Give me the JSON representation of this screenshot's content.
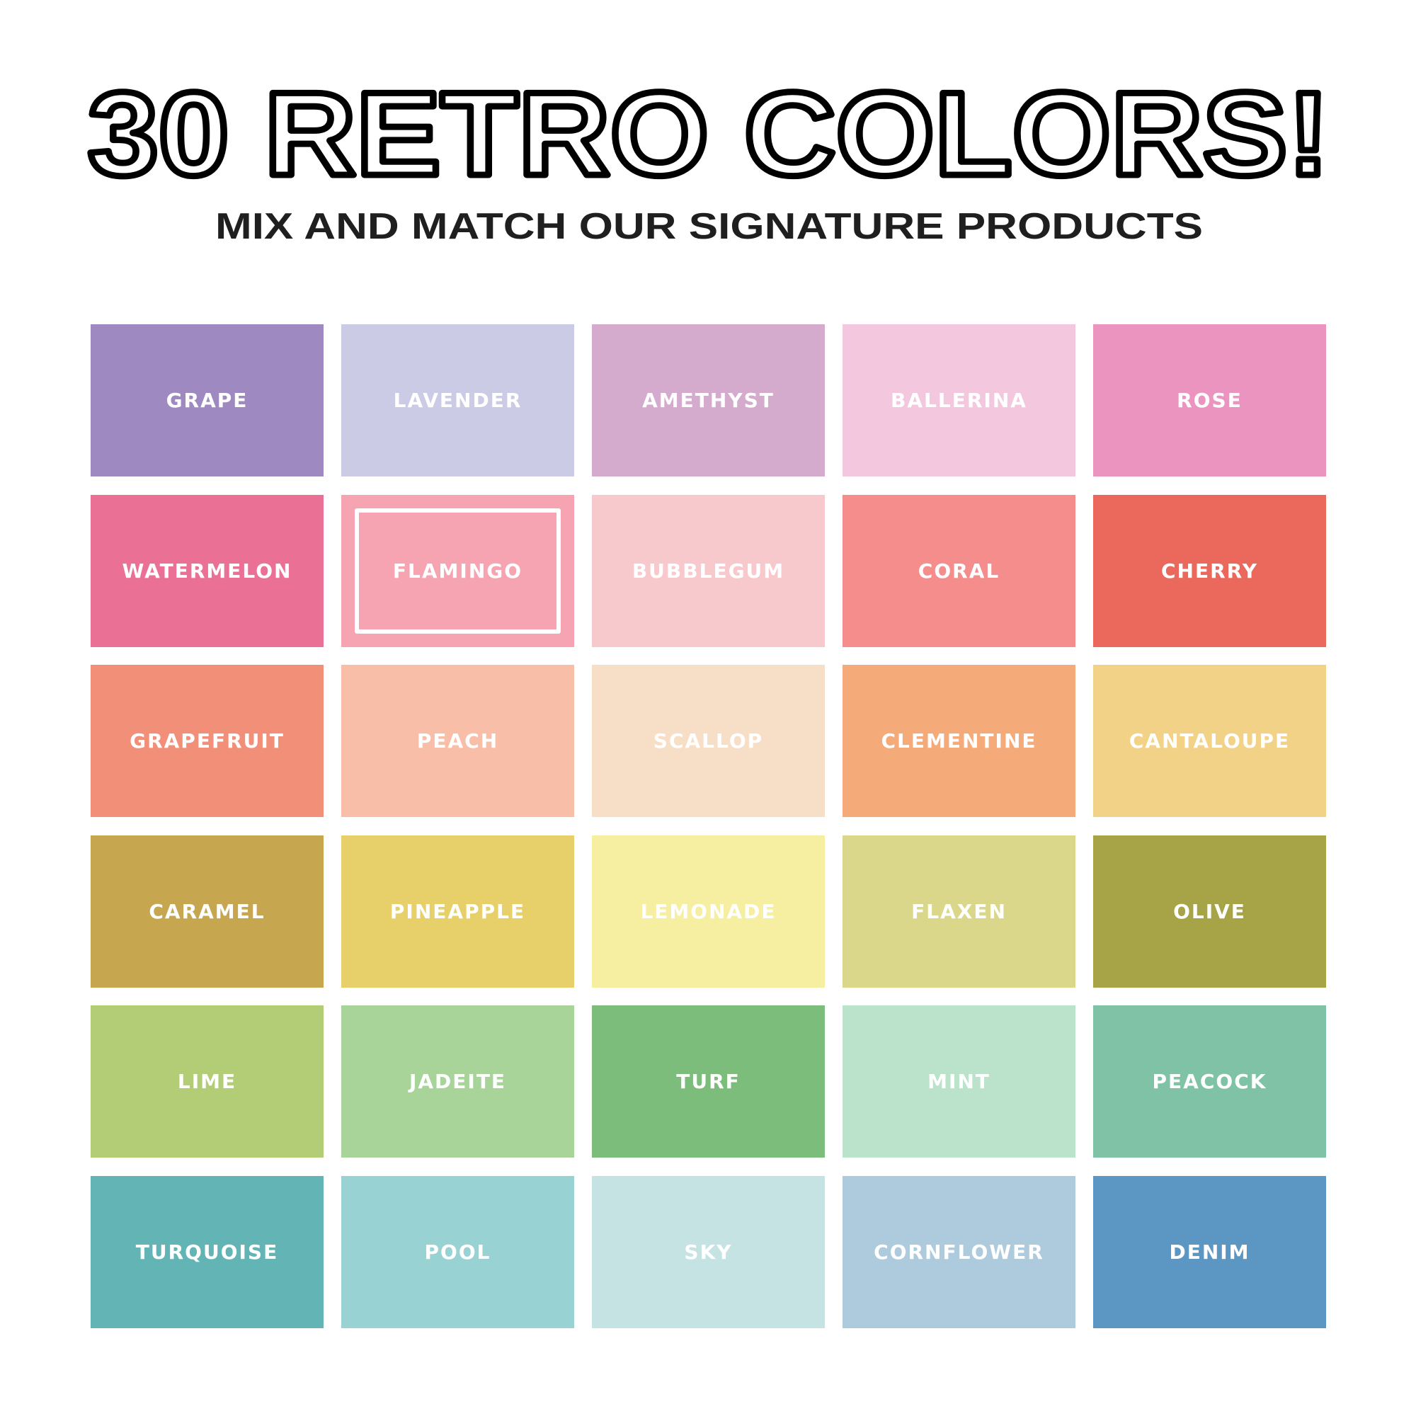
{
  "header": {
    "title": "30 RETRO COLORS!",
    "subtitle": "MIX AND MATCH OUR SIGNATURE PRODUCTS"
  },
  "selected_color": "FLAMINGO",
  "colors": [
    {
      "name": "GRAPE",
      "hex": "#9e89c0"
    },
    {
      "name": "LAVENDER",
      "hex": "#cbcbe6"
    },
    {
      "name": "AMETHYST",
      "hex": "#d4aacd"
    },
    {
      "name": "BALLERINA",
      "hex": "#f3c8df"
    },
    {
      "name": "ROSE",
      "hex": "#eb94bf"
    },
    {
      "name": "WATERMELON",
      "hex": "#ea7095"
    },
    {
      "name": "FLAMINGO",
      "hex": "#f6a3b2"
    },
    {
      "name": "BUBBLEGUM",
      "hex": "#f7c9cc"
    },
    {
      "name": "CORAL",
      "hex": "#f48d8b"
    },
    {
      "name": "CHERRY",
      "hex": "#ea695c"
    },
    {
      "name": "GRAPEFRUIT",
      "hex": "#f28f78"
    },
    {
      "name": "PEACH",
      "hex": "#f9bea7"
    },
    {
      "name": "SCALLOP",
      "hex": "#f7dec7"
    },
    {
      "name": "CLEMENTINE",
      "hex": "#f5aa7a"
    },
    {
      "name": "CANTALOUPE",
      "hex": "#f2d287"
    },
    {
      "name": "CARAMEL",
      "hex": "#c6a74f"
    },
    {
      "name": "PINEAPPLE",
      "hex": "#e7cf69"
    },
    {
      "name": "LEMONADE",
      "hex": "#f6eea0"
    },
    {
      "name": "FLAXEN",
      "hex": "#dad78b"
    },
    {
      "name": "OLIVE",
      "hex": "#a7a447"
    },
    {
      "name": "LIME",
      "hex": "#b2cd76"
    },
    {
      "name": "JADEITE",
      "hex": "#a8d49a"
    },
    {
      "name": "TURF",
      "hex": "#7dbd7c"
    },
    {
      "name": "MINT",
      "hex": "#bbe2ca"
    },
    {
      "name": "PEACOCK",
      "hex": "#80c2a5"
    },
    {
      "name": "TURQUOISE",
      "hex": "#62b5b4"
    },
    {
      "name": "POOL",
      "hex": "#98d2d3"
    },
    {
      "name": "SKY",
      "hex": "#c4e3e2"
    },
    {
      "name": "CORNFLOWER",
      "hex": "#aecbdd"
    },
    {
      "name": "DENIM",
      "hex": "#5c96c3"
    }
  ]
}
